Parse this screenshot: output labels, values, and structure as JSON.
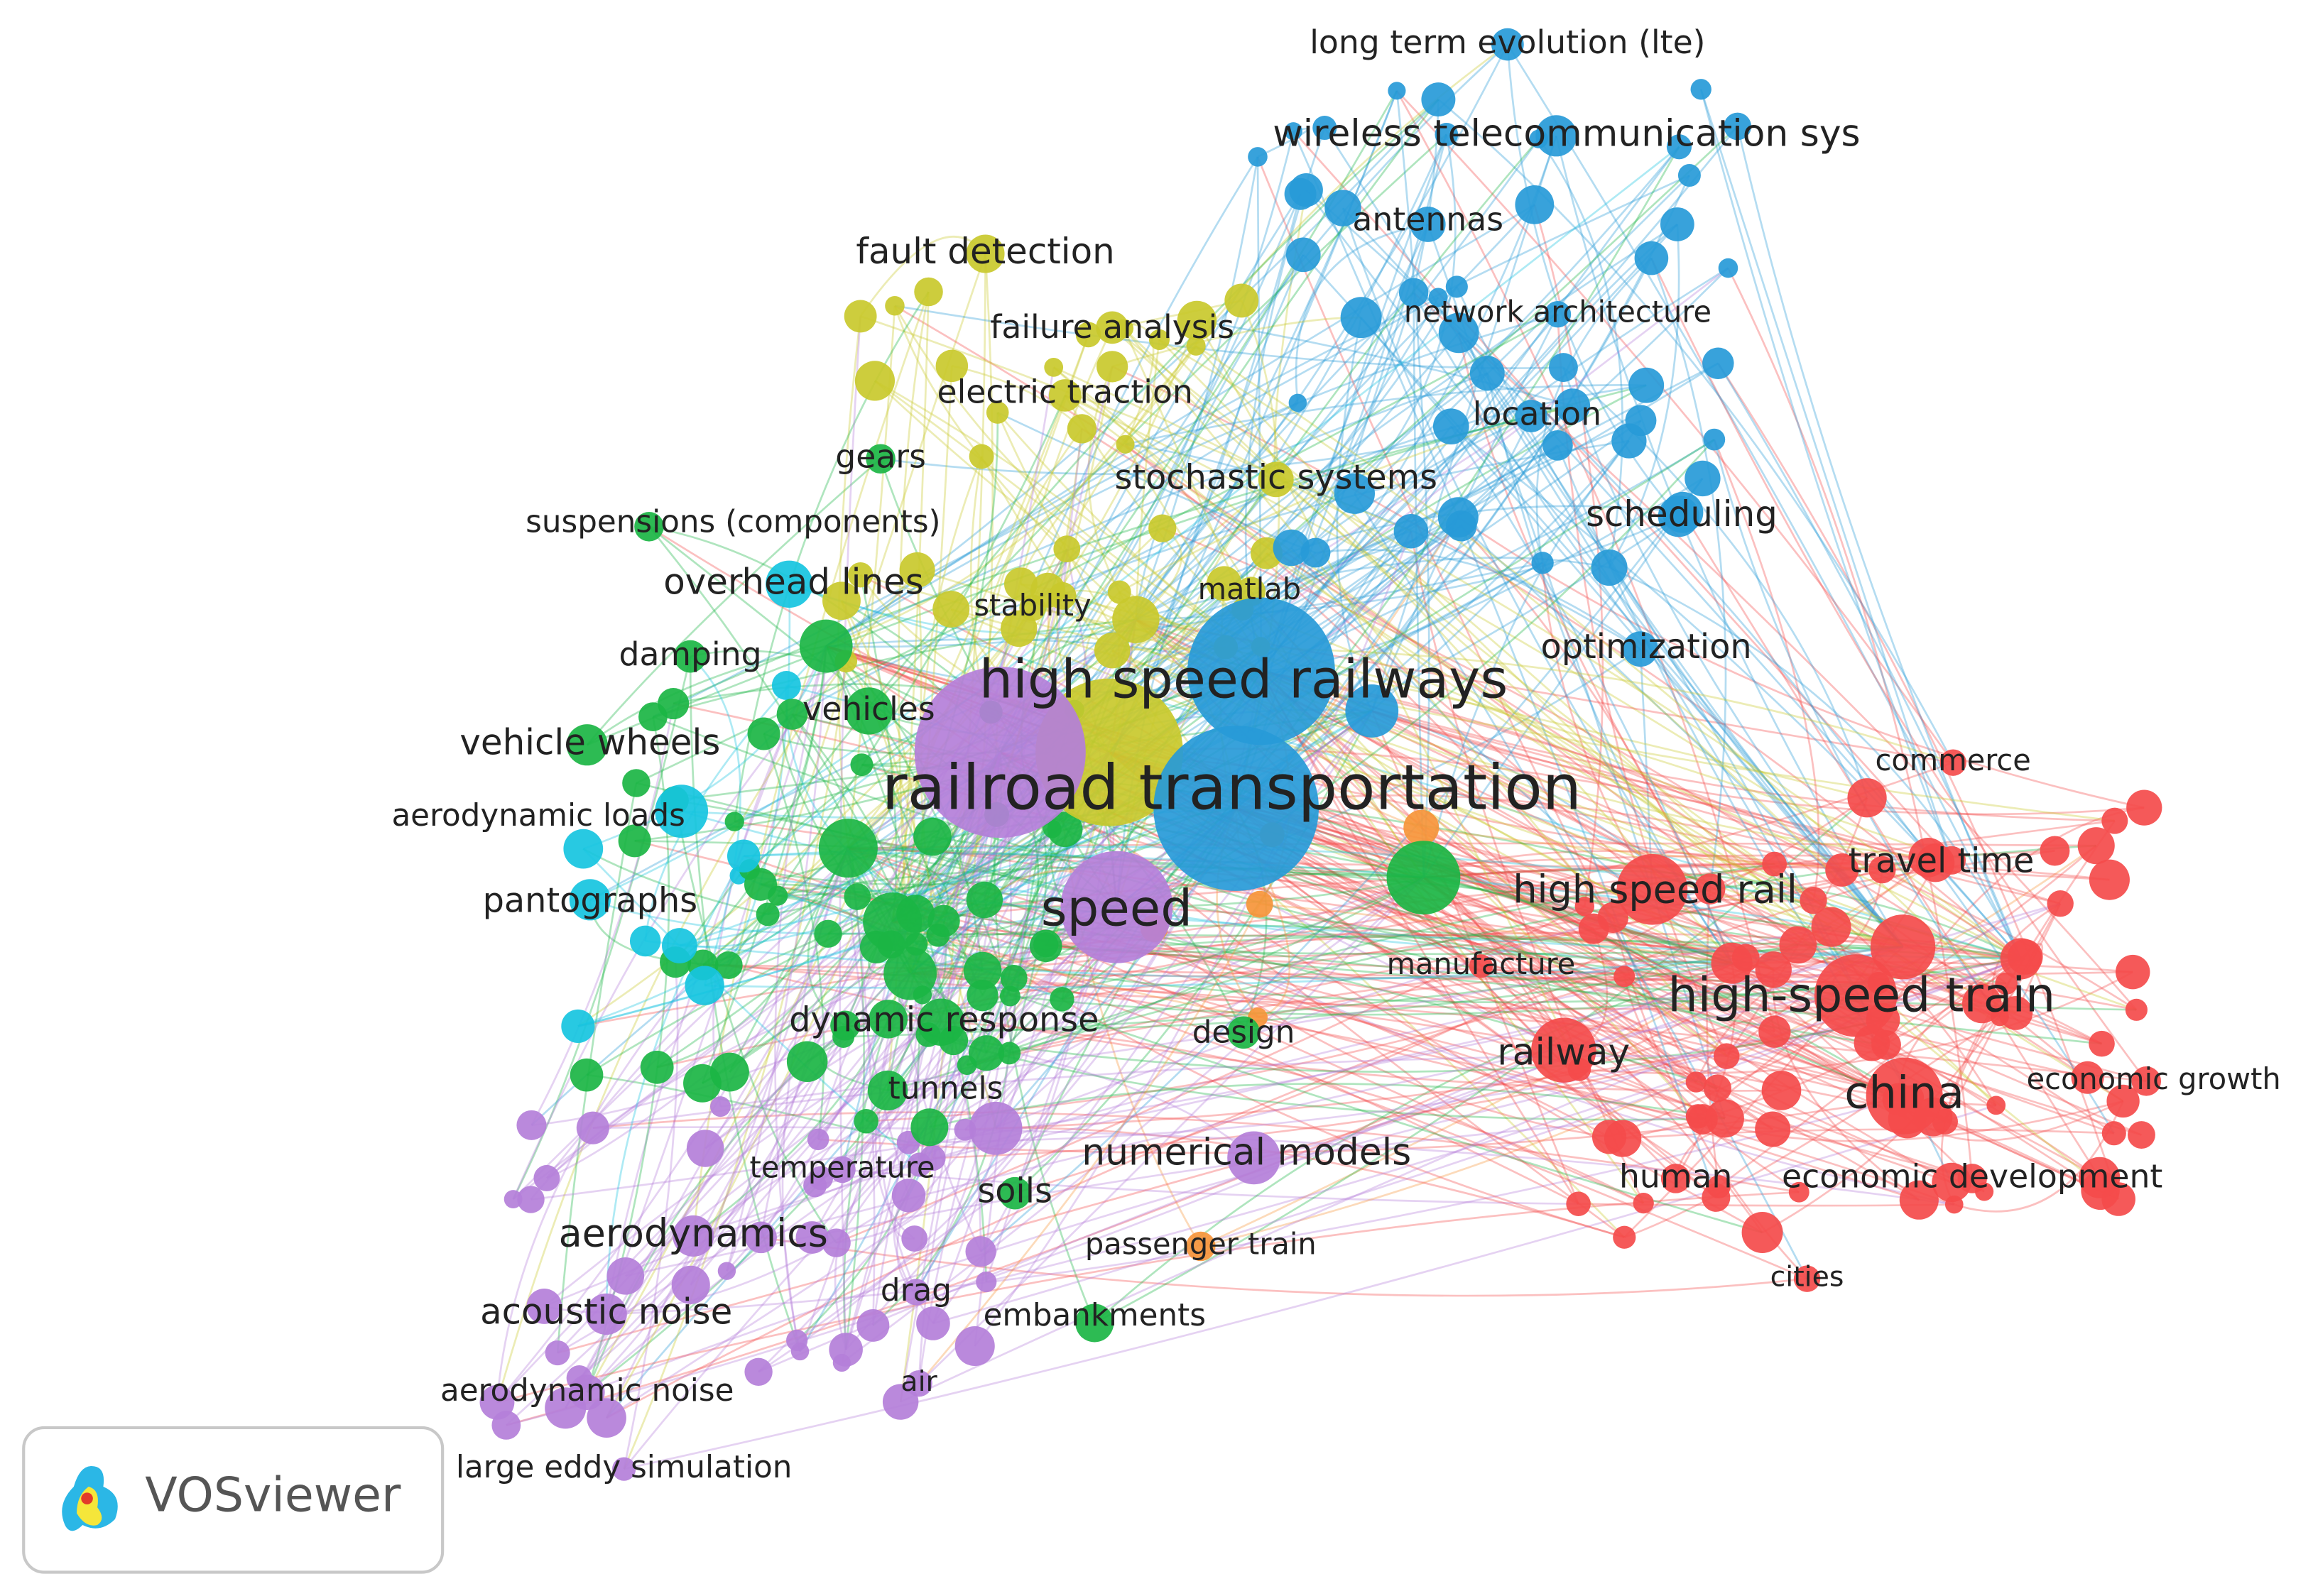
{
  "nodes": [
    "long term evolution (lte)",
    "wireless telecommunication sys",
    "antennas",
    "network architecture",
    "location",
    "scheduling",
    "optimization",
    "fault detection",
    "failure analysis",
    "electric traction",
    "gears",
    "stochastic systems",
    "suspensions (components)",
    "overhead lines",
    "stability",
    "matlab",
    "damping",
    "high speed railways",
    "vehicles",
    "vehicle wheels",
    "railroad transportation",
    "aerodynamic loads",
    "commerce",
    "travel time",
    "high speed rail",
    "pantographs",
    "speed",
    "manufacture",
    "high-speed train",
    "dynamic response",
    "design",
    "railway",
    "economic growth",
    "tunnels",
    "china",
    "numerical models",
    "temperature",
    "human",
    "economic development",
    "soils",
    "aerodynamics",
    "passenger train",
    "cities",
    "drag",
    "acoustic noise",
    "embankments",
    "aerodynamic noise",
    "air",
    "large eddy simulation"
  ],
  "logo": {
    "text": "VOSviewer"
  }
}
